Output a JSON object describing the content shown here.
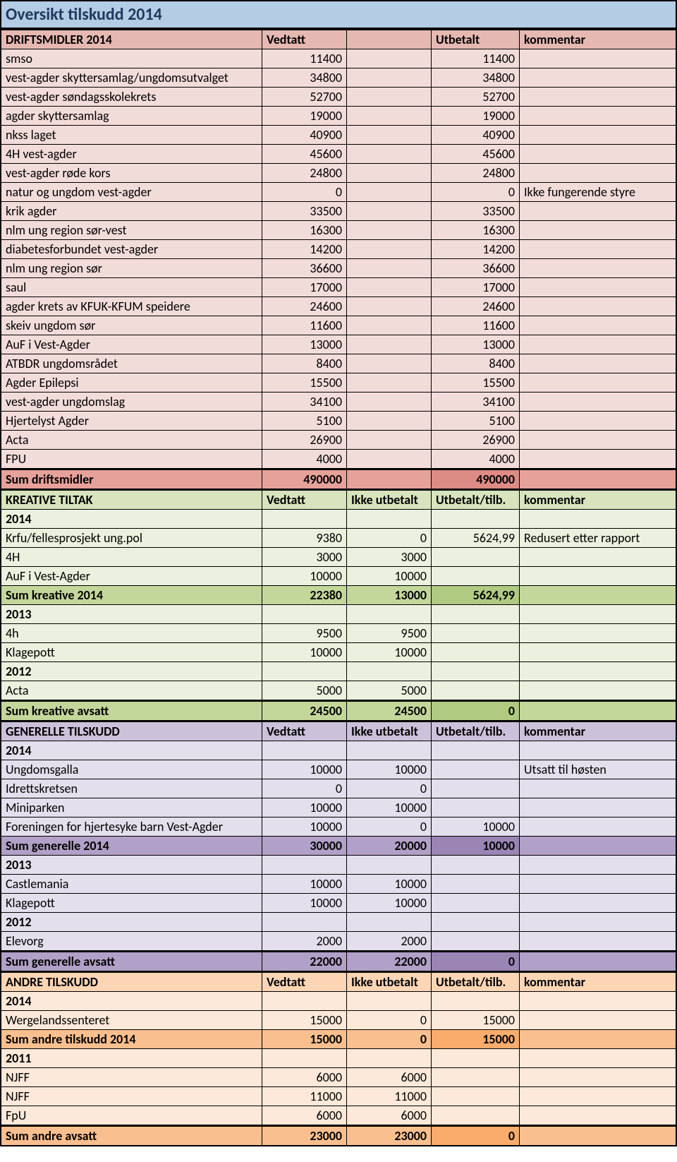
{
  "title": "Oversikt tilskudd 2014",
  "colors": {
    "title_bg": "#b4cce4",
    "pink_header": "#e6b8b2",
    "pink_row": "#f2dcda",
    "pink_sum": "#e6a19a",
    "pink_sum_hi": "#dd8b85",
    "green_header": "#d7e4bd",
    "green_row": "#ebf1de",
    "green_sum": "#c4d79b",
    "green_sum_hi": "#b0ca81",
    "purple_header": "#ccc1da",
    "purple_row": "#e4dfec",
    "purple_sum": "#b1a0c7",
    "purple_sum_hi": "#9a85b5",
    "orange_header": "#fcd5b5",
    "orange_row": "#fde9d9",
    "orange_sum": "#fabf8f",
    "orange_sum_hi": "#f9ac6b"
  },
  "drift": {
    "header": {
      "name": "DRIFTSMIDLER 2014",
      "a": "Vedtatt",
      "b": "",
      "c": "Utbetalt",
      "d": "kommentar"
    },
    "rows": [
      {
        "name": "smso",
        "a": "11400",
        "c": "11400"
      },
      {
        "name": "vest-agder skyttersamlag/ungdomsutvalget",
        "a": "34800",
        "c": "34800"
      },
      {
        "name": "vest-agder søndagsskolekrets",
        "a": "52700",
        "c": "52700"
      },
      {
        "name": "agder skyttersamlag",
        "a": "19000",
        "c": "19000"
      },
      {
        "name": "nkss laget",
        "a": "40900",
        "c": "40900"
      },
      {
        "name": "4H vest-agder",
        "a": "45600",
        "c": "45600"
      },
      {
        "name": "vest-agder røde kors",
        "a": "24800",
        "c": "24800"
      },
      {
        "name": "natur og ungdom vest-agder",
        "a": "0",
        "c": "0",
        "d": "Ikke fungerende styre"
      },
      {
        "name": "krik agder",
        "a": "33500",
        "c": "33500"
      },
      {
        "name": "nlm ung region sør-vest",
        "a": "16300",
        "c": "16300"
      },
      {
        "name": "diabetesforbundet vest-agder",
        "a": "14200",
        "c": "14200"
      },
      {
        "name": "nlm ung region sør",
        "a": "36600",
        "c": "36600"
      },
      {
        "name": "saul",
        "a": "17000",
        "c": "17000"
      },
      {
        "name": "agder krets av KFUK-KFUM speidere",
        "a": "24600",
        "c": "24600"
      },
      {
        "name": "skeiv ungdom sør",
        "a": "11600",
        "c": "11600"
      },
      {
        "name": "AuF i Vest-Agder",
        "a": "13000",
        "c": "13000"
      },
      {
        "name": "ATBDR ungdomsrådet",
        "a": "8400",
        "c": "8400"
      },
      {
        "name": "Agder Epilepsi",
        "a": "15500",
        "c": "15500"
      },
      {
        "name": "vest-agder ungdomslag",
        "a": "34100",
        "c": "34100"
      },
      {
        "name": "Hjertelyst Agder",
        "a": "5100",
        "c": "5100"
      },
      {
        "name": "Acta",
        "a": "26900",
        "c": "26900"
      },
      {
        "name": "FPU",
        "a": "4000",
        "c": "4000"
      }
    ],
    "sum": {
      "name": "Sum driftsmidler",
      "a": "490000",
      "c": "490000"
    }
  },
  "kreative": {
    "header": {
      "name": "KREATIVE TILTAK",
      "a": "Vedtatt",
      "b": "Ikke utbetalt",
      "c": "Utbetalt/tilb.",
      "d": "kommentar"
    },
    "groups": [
      {
        "year": "2014",
        "rows": [
          {
            "name": "Krfu/fellesprosjekt ung.pol",
            "a": "9380",
            "b": "0",
            "c": "5624,99",
            "d": "Redusert etter rapport"
          },
          {
            "name": "4H",
            "a": "3000",
            "b": "3000"
          },
          {
            "name": "AuF i Vest-Agder",
            "a": "10000",
            "b": "10000"
          }
        ],
        "sum": {
          "name": "Sum kreative 2014",
          "a": "22380",
          "b": "13000",
          "c": "5624,99"
        }
      },
      {
        "year": "2013",
        "rows": [
          {
            "name": "4h",
            "a": "9500",
            "b": "9500"
          },
          {
            "name": "Klagepott",
            "a": "10000",
            "b": "10000"
          }
        ]
      },
      {
        "year": "2012",
        "rows": [
          {
            "name": "Acta",
            "a": "5000",
            "b": "5000"
          }
        ]
      }
    ],
    "sum": {
      "name": "Sum kreative avsatt",
      "a": "24500",
      "b": "24500",
      "c": "0"
    }
  },
  "generelle": {
    "header": {
      "name": "GENERELLE TILSKUDD",
      "a": "Vedtatt",
      "b": "Ikke utbetalt",
      "c": "Utbetalt/tilb.",
      "d": "kommentar"
    },
    "groups": [
      {
        "year": "2014",
        "rows": [
          {
            "name": "Ungdomsgalla",
            "a": "10000",
            "b": "10000",
            "d": "Utsatt til høsten"
          },
          {
            "name": "Idrettskretsen",
            "a": "0",
            "b": "0"
          },
          {
            "name": "Miniparken",
            "a": "10000",
            "b": "10000"
          },
          {
            "name": "Foreningen for hjertesyke barn Vest-Agder",
            "a": "10000",
            "b": "0",
            "c": "10000"
          }
        ],
        "sum": {
          "name": "Sum generelle 2014",
          "a": "30000",
          "b": "20000",
          "c": "10000"
        }
      },
      {
        "year": "2013",
        "rows": [
          {
            "name": "Castlemania",
            "a": "10000",
            "b": "10000"
          },
          {
            "name": "Klagepott",
            "a": "10000",
            "b": "10000"
          }
        ]
      },
      {
        "year": "2012",
        "rows": [
          {
            "name": "Elevorg",
            "a": "2000",
            "b": "2000"
          }
        ]
      }
    ],
    "sum": {
      "name": "Sum generelle avsatt",
      "a": "22000",
      "b": "22000",
      "c": "0"
    }
  },
  "andre": {
    "header": {
      "name": "ANDRE TILSKUDD",
      "a": "Vedtatt",
      "b": "Ikke utbetalt",
      "c": "Utbetalt/tilb.",
      "d": "kommentar"
    },
    "groups": [
      {
        "year": "2014",
        "rows": [
          {
            "name": "Wergelandssenteret",
            "a": "15000",
            "b": "0",
            "c": "15000"
          }
        ],
        "sum": {
          "name": "Sum andre tilskudd 2014",
          "a": "15000",
          "b": "0",
          "c": "15000"
        }
      },
      {
        "year": "2011",
        "rows": [
          {
            "name": "NJFF",
            "a": "6000",
            "b": "6000"
          },
          {
            "name": "NJFF",
            "a": "11000",
            "b": "11000"
          },
          {
            "name": "FpU",
            "a": "6000",
            "b": "6000"
          }
        ]
      }
    ],
    "sum": {
      "name": "Sum andre avsatt",
      "a": "23000",
      "b": "23000",
      "c": "0"
    }
  }
}
